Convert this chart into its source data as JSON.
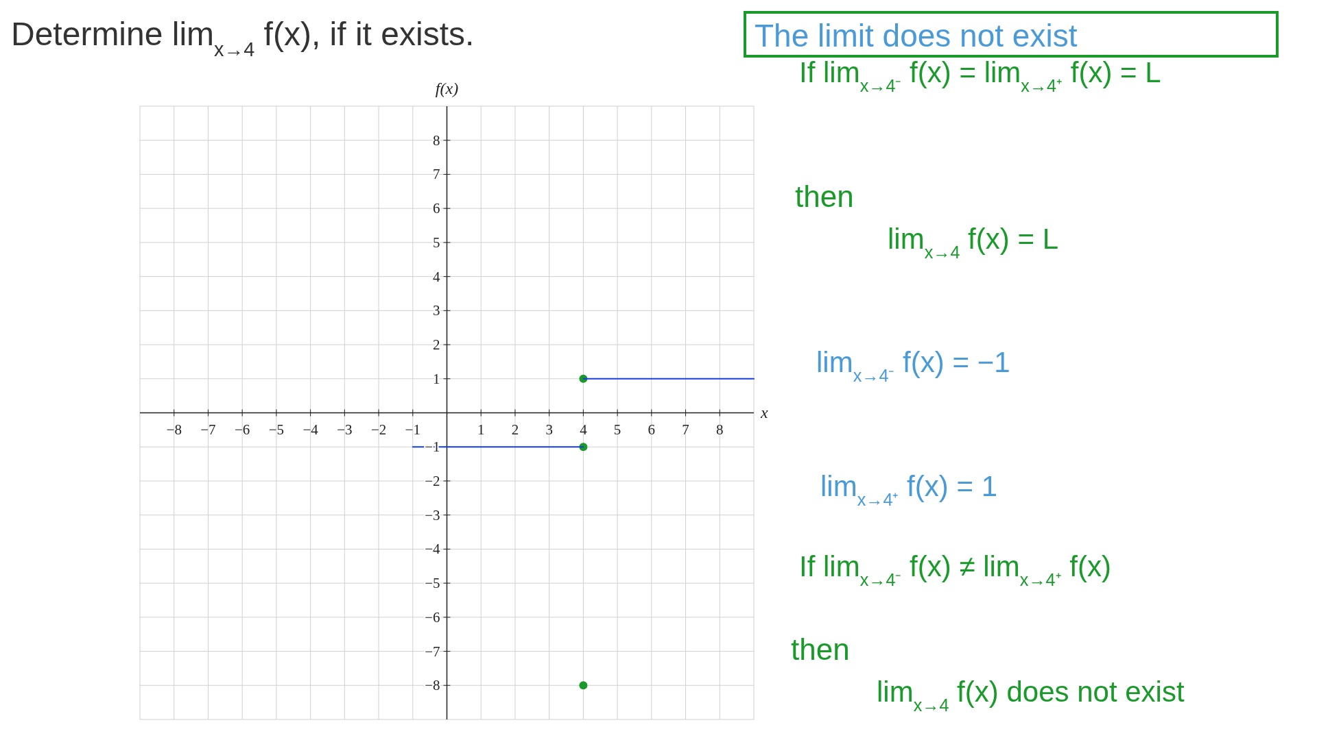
{
  "chart_data": {
    "type": "line",
    "title": "Determine lim$_{x→4}$ f(x), if it exists.",
    "xlabel": "x",
    "ylabel": "f(x)",
    "xlim": [
      -9,
      9
    ],
    "ylim": [
      -9,
      9
    ],
    "xticks": [
      -8,
      -7,
      -6,
      -5,
      -4,
      -3,
      -2,
      -1,
      1,
      2,
      3,
      4,
      5,
      6,
      7,
      8
    ],
    "yticks": [
      -8,
      -7,
      -6,
      -5,
      -4,
      -3,
      -2,
      -1,
      1,
      2,
      3,
      4,
      5,
      6,
      7,
      8
    ],
    "grid": true,
    "line_style": "solid",
    "series": [
      {
        "type": "scatter",
        "marker": "circle",
        "color": "#1a9a2a",
        "x": [
          4,
          4,
          4
        ],
        "values": [
          1,
          -1,
          -8
        ]
      },
      {
        "color": "#1a3fe0",
        "marker": "none",
        "x": [
          -1,
          4
        ],
        "values": [
          -1,
          -1
        ]
      },
      {
        "color": "#1a3fe0",
        "marker": "none",
        "x": [
          4,
          9
        ],
        "values": [
          1,
          1
        ]
      }
    ],
    "annotations": [
      "The limit does not exist",
      "If lim$_{x→4⁻}$ f(x) = lim$_{x→4⁺}$ f(x) = L",
      "then",
      "lim$_{x→4}$ f(x) = L",
      "lim$_{x→4⁻}$ f(x) = −1",
      "lim$_{x→4⁺}$ f(x) = 1",
      "If lim$_{x→4⁻}$ f(x) ≠ lim$_{x→4⁺}$ f(x)",
      "then",
      "lim$_{x→4}$ f(x) does not exist"
    ]
  }
}
